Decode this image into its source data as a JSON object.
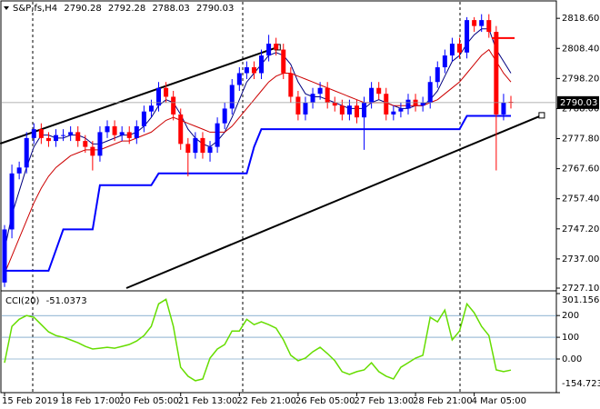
{
  "chart_data": {
    "type": "candlestick",
    "title": "S&P,fs,H4",
    "categories": [
      "15 Feb 2019",
      null,
      null,
      null,
      null,
      null,
      null,
      null,
      "18 Feb 17:00",
      null,
      null,
      null,
      null,
      null,
      null,
      null,
      "20 Feb 05:00",
      null,
      null,
      null,
      null,
      null,
      null,
      null,
      "21 Feb 13:00",
      null,
      null,
      null,
      null,
      null,
      null,
      null,
      "22 Feb 21:00",
      null,
      null,
      null,
      null,
      null,
      null,
      null,
      "26 Feb 05:00",
      null,
      null,
      null,
      null,
      null,
      null,
      null,
      "27 Feb 13:00",
      null,
      null,
      null,
      null,
      null,
      null,
      null,
      "28 Feb 21:00",
      null,
      null,
      null,
      null,
      null,
      null,
      null,
      "4 Mar 05:00",
      null,
      null,
      null,
      null,
      null
    ],
    "open": [
      2729,
      2747,
      2766,
      2768,
      2778,
      2781,
      2778,
      2777,
      2779,
      2779,
      2780,
      2777,
      2775,
      2772,
      2780,
      2782,
      2779,
      2780,
      2778,
      2782,
      2787,
      2789,
      2795,
      2792,
      2786,
      2776,
      2773,
      2778,
      2773,
      2775,
      2783,
      2788,
      2796,
      2800,
      2802,
      2800,
      2806,
      2810,
      2808,
      2800,
      2792,
      2786,
      2790,
      2793,
      2795,
      2790,
      2789,
      2786,
      2789,
      2785,
      2790,
      2795,
      2793,
      2786,
      2787,
      2788,
      2791,
      2789,
      2790,
      2797,
      2802,
      2806,
      2810,
      2807,
      2818,
      2816,
      2818,
      2814,
      2786,
      2790.28
    ],
    "high": [
      2748.5,
      2769,
      2770,
      2780,
      2783,
      2783,
      2780,
      2781,
      2781,
      2782,
      2782,
      2779,
      2777,
      2782,
      2784,
      2784,
      2782,
      2782,
      2784,
      2789,
      2791,
      2797,
      2797,
      2794,
      2788,
      2778,
      2780,
      2780,
      2777,
      2785,
      2790,
      2798,
      2802,
      2804,
      2804,
      2808,
      2813,
      2812,
      2810,
      2802,
      2794,
      2792,
      2795,
      2797,
      2797,
      2792,
      2791,
      2791,
      2791,
      2792,
      2797,
      2797,
      2795,
      2789,
      2790,
      2793,
      2793,
      2792,
      2799,
      2804,
      2808,
      2812,
      2812,
      2819,
      2819,
      2820,
      2820,
      2816,
      2793,
      2792.28
    ],
    "low": [
      2727.5,
      2744,
      2764,
      2766,
      2776,
      2776,
      2775,
      2775,
      2777,
      2777,
      2775,
      2773,
      2767,
      2770,
      2778,
      2777,
      2777,
      2776,
      2776,
      2780,
      2785,
      2787,
      2790,
      2784,
      2774,
      2765,
      2771,
      2771,
      2770,
      2773,
      2781,
      2786,
      2794,
      2798,
      2798,
      2798,
      2804,
      2806,
      2798,
      2790,
      2784,
      2784,
      2788,
      2791,
      2788,
      2787,
      2784,
      2784,
      2783,
      2774,
      2788,
      2791,
      2784,
      2784,
      2785,
      2786,
      2787,
      2787,
      2788,
      2795,
      2800,
      2804,
      2805,
      2805,
      2814,
      2814,
      2812,
      2767,
      2784,
      2788.03
    ],
    "close": [
      2747,
      2766,
      2768,
      2778,
      2781,
      2778,
      2777,
      2779,
      2779,
      2780,
      2777,
      2775,
      2772,
      2780,
      2782,
      2779,
      2780,
      2778,
      2782,
      2787,
      2789,
      2795,
      2792,
      2786,
      2776,
      2773,
      2778,
      2773,
      2775,
      2783,
      2788,
      2796,
      2800,
      2802,
      2800,
      2806,
      2810,
      2808,
      2800,
      2792,
      2786,
      2790,
      2793,
      2795,
      2790,
      2789,
      2786,
      2789,
      2785,
      2790,
      2795,
      2793,
      2786,
      2787,
      2788,
      2791,
      2789,
      2790,
      2797,
      2802,
      2806,
      2810,
      2807,
      2818,
      2816,
      2818,
      2814,
      2786,
      2790,
      2790.03
    ],
    "bull_color": "#0000ff",
    "bear_color": "#ff0000",
    "overlays": [
      {
        "color": "#000080",
        "width": 1,
        "values": [
          2740,
          2752,
          2760,
          2768,
          2775,
          2779,
          2779,
          2778,
          2778,
          2779,
          2779,
          2778,
          2776,
          2776,
          2777,
          2778,
          2779,
          2779,
          2780,
          2782,
          2785,
          2789,
          2791,
          2790,
          2786,
          2781,
          2778,
          2776,
          2775,
          2777,
          2780,
          2785,
          2791,
          2797,
          2800,
          2803,
          2806,
          2807,
          2806,
          2803,
          2797,
          2793,
          2792,
          2792,
          2791,
          2790,
          2789,
          2788,
          2788,
          2788,
          2790,
          2791,
          2790,
          2789,
          2788,
          2788,
          2789,
          2789,
          2791,
          2794,
          2799,
          2804,
          2806,
          2810,
          2813,
          2815,
          2815,
          2808,
          2804,
          2800
        ]
      },
      {
        "color": "#cc0000",
        "width": 1,
        "values": [
          2732,
          2738,
          2744,
          2750,
          2756,
          2761,
          2765,
          2768,
          2770,
          2772,
          2773,
          2774,
          2774,
          2774,
          2775,
          2776,
          2777,
          2777,
          2778,
          2779,
          2780,
          2782,
          2784,
          2785,
          2784,
          2783,
          2782,
          2781,
          2780,
          2780,
          2780,
          2782,
          2785,
          2788,
          2791,
          2794,
          2797,
          2799,
          2800,
          2800,
          2799,
          2798,
          2797,
          2796,
          2795,
          2794,
          2793,
          2792,
          2791,
          2790,
          2790,
          2790,
          2790,
          2789,
          2789,
          2789,
          2789,
          2789,
          2790,
          2791,
          2793,
          2795,
          2797,
          2800,
          2803,
          2806,
          2808,
          2804,
          2800,
          2797
        ]
      },
      {
        "color": "#0000ff",
        "width": 2,
        "values": [
          2733,
          2733,
          2733,
          2733,
          2733,
          2733,
          2733,
          2740,
          2747,
          2747,
          2747,
          2747,
          2747,
          2762,
          2762,
          2762,
          2762,
          2762,
          2762,
          2762,
          2762,
          2766,
          2766,
          2766,
          2766,
          2766,
          2766,
          2766,
          2766,
          2766,
          2766,
          2766,
          2766,
          2766,
          2775,
          2781,
          2781,
          2781,
          2781,
          2781,
          2781,
          2781,
          2781,
          2781,
          2781,
          2781,
          2781,
          2781,
          2781,
          2781,
          2781,
          2781,
          2781,
          2781,
          2781,
          2781,
          2781,
          2781,
          2781,
          2781,
          2781,
          2781,
          2781,
          2785.5,
          2785.5,
          2785.5,
          2785.5,
          2785.5,
          2785.5,
          2785.5
        ]
      }
    ],
    "trendlines": [
      {
        "color": "#000000",
        "x": [
          -0.6,
          37.2
        ],
        "values": [
          2776.1,
          2808.8
        ]
      },
      {
        "color": "#000000",
        "x": [
          16.6,
          73.2
        ],
        "values": [
          2727.1,
          2785.7
        ]
      }
    ],
    "level": {
      "color": "#ff0000",
      "x": [
        66.4,
        69.5
      ],
      "value": 2811.9
    },
    "ylim": [
      2727.1,
      2824.2
    ],
    "yticks": [
      {
        "value": 2818.6,
        "label": "2818.60"
      },
      {
        "value": 2808.4,
        "label": "2808.40"
      },
      {
        "value": 2798.2,
        "label": "2798.20"
      },
      {
        "value": 2788.0,
        "label": "2788.00"
      },
      {
        "value": 2777.8,
        "label": "2777.80"
      },
      {
        "value": 2767.6,
        "label": "2767.60"
      },
      {
        "value": 2757.4,
        "label": "2757.40"
      },
      {
        "value": 2747.2,
        "label": "2747.20"
      },
      {
        "value": 2737.0,
        "label": "2737.00"
      },
      {
        "value": 2727.1,
        "label": "2727.10"
      }
    ],
    "indicator": {
      "label": "CCI(20)",
      "color": "#66dd00",
      "values": [
        -17,
        150,
        183,
        200,
        192,
        158,
        125,
        108,
        100,
        88,
        75,
        58,
        46,
        50,
        54,
        50,
        58,
        67,
        83,
        108,
        150,
        254,
        275,
        150,
        -38,
        -79,
        -100,
        -92,
        4,
        46,
        67,
        129,
        129,
        183,
        158,
        171,
        158,
        142,
        88,
        17,
        -8,
        4,
        33,
        54,
        25,
        -8,
        -58,
        -71,
        -58,
        -50,
        -17,
        -58,
        -79,
        -92,
        -38,
        -17,
        4,
        17,
        192,
        171,
        225,
        88,
        129,
        254,
        213,
        150,
        108,
        -50,
        -58,
        -51.0373
      ],
      "ylim": [
        -154.7236,
        301.1562
      ],
      "yticks": [
        301.1562,
        200,
        100,
        {
          "value": 0,
          "label": "0.00"
        },
        -154.7236
      ]
    }
  }
}
